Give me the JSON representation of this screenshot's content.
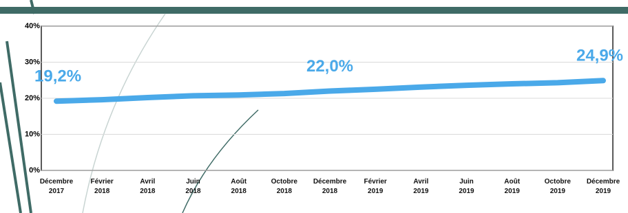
{
  "chart_data": {
    "type": "line",
    "categories": [
      "Décembre\n2017",
      "Février\n2018",
      "Avril\n2018",
      "Juin\n2018",
      "Août\n2018",
      "Octobre\n2018",
      "Décembre\n2018",
      "Février\n2019",
      "Avril\n2019",
      "Juin\n2019",
      "Août\n2019",
      "Octobre\n2019",
      "Décembre\n2019"
    ],
    "series": [
      {
        "color": "#4aa9e9",
        "values": [
          19.2,
          19.6,
          20.2,
          20.7,
          20.9,
          21.3,
          22.0,
          22.5,
          23.1,
          23.6,
          24.0,
          24.3,
          24.9
        ],
        "value_labels": [
          "19,2%",
          null,
          null,
          null,
          null,
          null,
          "22,0%",
          null,
          null,
          null,
          null,
          null,
          "24,9%"
        ]
      }
    ],
    "ylim": [
      0,
      40
    ],
    "yticks": [
      {
        "value": 0,
        "label": "0%"
      },
      {
        "value": 10,
        "label": "10%"
      },
      {
        "value": 20,
        "label": "20%"
      },
      {
        "value": 30,
        "label": "30%"
      },
      {
        "value": 40,
        "label": "40%"
      }
    ],
    "grid": true
  }
}
